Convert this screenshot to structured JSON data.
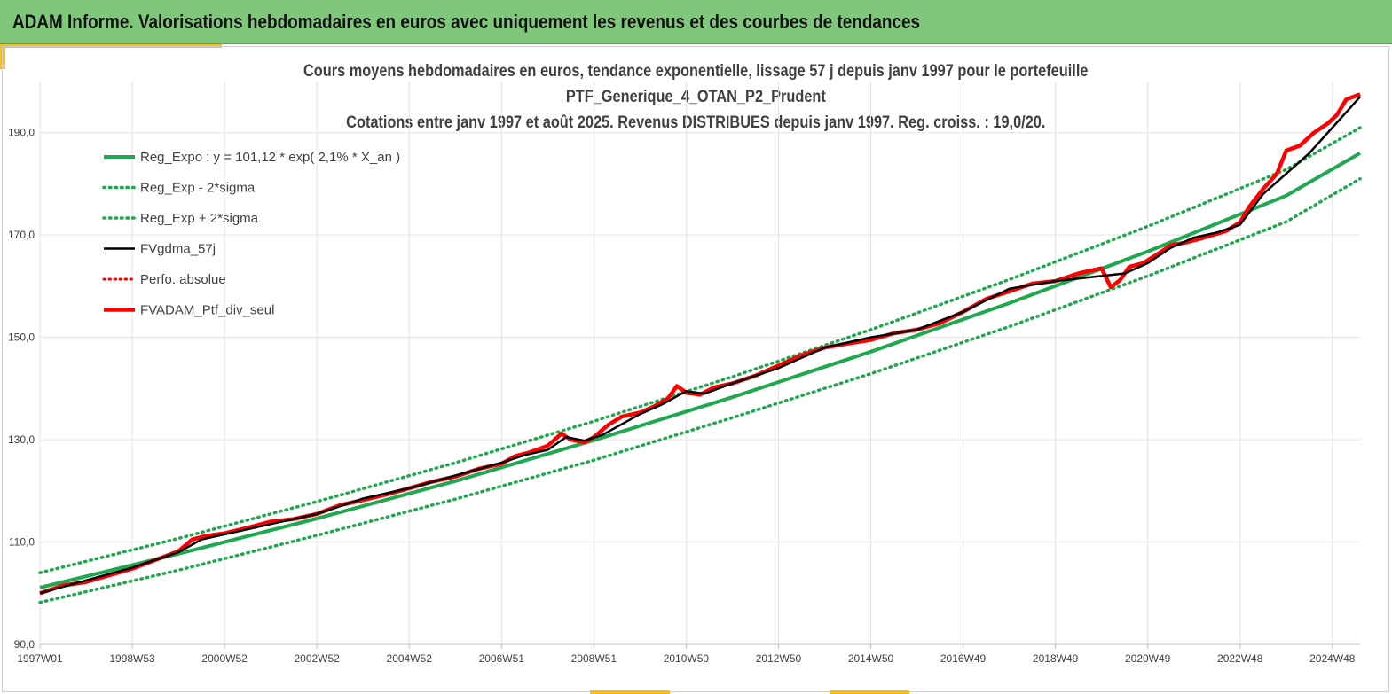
{
  "banner": {
    "title": "ADAM Informe. Valorisations hebdomadaires en euros avec uniquement les revenus et des courbes de tendances"
  },
  "chart_data": {
    "type": "line",
    "title_lines": [
      "Cours moyens hebdomadaires  en euros, tendance exponentielle, lissage 57 j depuis janv 1997 pour le portefeuille",
      "PTF_Generique_4_OTAN_P2_Prudent",
      "Cotations  entre janv 1997 et août 2025. Revenus DISTRIBUES depuis janv 1997. Reg. croiss. : 19,0/20."
    ],
    "xlabel": "",
    "ylabel": "",
    "ylim": [
      90,
      200
    ],
    "xlim": [
      1997.0,
      2025.6
    ],
    "yticks": [
      "90,0",
      "110,0",
      "130,0",
      "150,0",
      "170,0",
      "190,0"
    ],
    "yticks_values": [
      90,
      110,
      130,
      150,
      170,
      190
    ],
    "xticks": [
      "1997W01",
      "1998W53",
      "2000W52",
      "2002W52",
      "2004W52",
      "2006W51",
      "2008W51",
      "2010W50",
      "2012W50",
      "2014W50",
      "2016W49",
      "2018W49",
      "2020W49",
      "2022W48",
      "2024W48"
    ],
    "xticks_values": [
      1997.0,
      1999.0,
      2001.0,
      2003.0,
      2005.0,
      2007.0,
      2009.0,
      2011.0,
      2013.0,
      2015.0,
      2017.0,
      2019.0,
      2021.0,
      2023.0,
      2025.0
    ],
    "grid": true,
    "legend_position": "top-left",
    "colors": {
      "reg": "#1fa84f",
      "smooth": "#000000",
      "perf": "#ff0000",
      "frame": "#d0d0d0",
      "grid": "#e3e3e3"
    },
    "series": [
      {
        "name": "Reg_Expo : y = 101,12 * exp( 2,1% *  X_an )",
        "style": "solid-green",
        "x": [
          1997.0,
          2000.0,
          2003.0,
          2006.0,
          2009.0,
          2012.0,
          2015.0,
          2018.0,
          2021.0,
          2024.0,
          2025.6
        ],
        "y": [
          101.1,
          107.7,
          114.6,
          121.9,
          129.9,
          138.3,
          147.2,
          156.7,
          166.8,
          177.7,
          186.0
        ]
      },
      {
        "name": "Reg_Exp - 2*sigma",
        "style": "dotted-green",
        "x": [
          1997.0,
          2000.0,
          2003.0,
          2006.0,
          2009.0,
          2012.0,
          2015.0,
          2018.0,
          2021.0,
          2024.0,
          2025.6
        ],
        "y": [
          98.2,
          104.5,
          111.3,
          118.4,
          126.0,
          134.3,
          142.9,
          152.1,
          162.0,
          172.6,
          181.0
        ]
      },
      {
        "name": "Reg_Exp + 2*sigma",
        "style": "dotted-green",
        "x": [
          1997.0,
          2000.0,
          2003.0,
          2006.0,
          2009.0,
          2012.0,
          2015.0,
          2018.0,
          2021.0,
          2024.0,
          2025.6
        ],
        "y": [
          104.0,
          110.7,
          117.9,
          125.5,
          133.6,
          142.3,
          151.5,
          161.3,
          171.7,
          182.8,
          191.0
        ]
      },
      {
        "name": "FVgdma_57j",
        "style": "solid-black",
        "x": [
          1997.0,
          1998.0,
          1999.0,
          2000.0,
          2000.5,
          2001.0,
          2002.0,
          2003.0,
          2004.0,
          2005.0,
          2006.0,
          2007.0,
          2007.5,
          2008.0,
          2008.4,
          2008.8,
          2009.2,
          2010.0,
          2010.5,
          2011.0,
          2011.4,
          2012.0,
          2013.0,
          2014.0,
          2015.0,
          2016.0,
          2017.0,
          2018.0,
          2019.0,
          2020.0,
          2020.5,
          2021.0,
          2021.5,
          2022.0,
          2022.5,
          2023.0,
          2023.5,
          2024.0,
          2024.5,
          2025.0,
          2025.6
        ],
        "y": [
          100.0,
          102.5,
          105.0,
          108.0,
          110.5,
          111.5,
          113.5,
          115.5,
          118.5,
          120.5,
          123.0,
          125.5,
          127.0,
          128.0,
          130.5,
          129.8,
          131.0,
          135.0,
          137.0,
          139.5,
          139.0,
          141.0,
          144.0,
          148.0,
          150.0,
          151.5,
          155.0,
          159.5,
          161.0,
          162.0,
          162.5,
          164.5,
          167.5,
          169.5,
          170.5,
          172.0,
          178.0,
          182.0,
          186.0,
          191.0,
          197.0
        ]
      },
      {
        "name": "Perfo. absolue",
        "style": "dotted-red",
        "x": [],
        "y": []
      },
      {
        "name": "FVADAM_Ptf_div_seul",
        "style": "thick-red",
        "x": [
          1997.0,
          1997.5,
          1998.0,
          1998.5,
          1999.0,
          1999.5,
          2000.0,
          2000.3,
          2000.6,
          2001.0,
          2001.5,
          2002.0,
          2002.5,
          2003.0,
          2003.5,
          2004.0,
          2004.5,
          2005.0,
          2005.5,
          2006.0,
          2006.5,
          2007.0,
          2007.3,
          2007.6,
          2008.0,
          2008.3,
          2008.5,
          2008.8,
          2009.0,
          2009.3,
          2009.6,
          2010.0,
          2010.3,
          2010.6,
          2010.8,
          2011.0,
          2011.3,
          2011.6,
          2012.0,
          2012.5,
          2013.0,
          2013.5,
          2014.0,
          2014.5,
          2015.0,
          2015.5,
          2016.0,
          2016.5,
          2017.0,
          2017.5,
          2018.0,
          2018.5,
          2019.0,
          2019.5,
          2020.0,
          2020.2,
          2020.4,
          2020.6,
          2020.9,
          2021.2,
          2021.5,
          2021.8,
          2022.1,
          2022.4,
          2022.7,
          2023.0,
          2023.2,
          2023.5,
          2023.8,
          2024.0,
          2024.3,
          2024.6,
          2024.9,
          2025.1,
          2025.3,
          2025.6
        ],
        "y": [
          100.0,
          101.5,
          102.2,
          103.5,
          104.8,
          106.5,
          108.2,
          110.5,
          111.2,
          111.7,
          112.8,
          114.0,
          114.5,
          115.5,
          117.2,
          118.2,
          119.3,
          120.5,
          121.8,
          122.8,
          124.3,
          125.3,
          126.8,
          127.5,
          128.8,
          131.2,
          130.0,
          129.5,
          130.5,
          132.8,
          134.5,
          135.3,
          136.5,
          138.0,
          140.5,
          139.2,
          138.8,
          140.2,
          141.0,
          142.5,
          144.5,
          146.5,
          148.0,
          148.8,
          149.5,
          150.8,
          151.5,
          152.8,
          155.0,
          157.5,
          159.0,
          160.5,
          161.0,
          162.5,
          163.5,
          159.8,
          161.2,
          163.8,
          164.5,
          166.2,
          168.0,
          168.5,
          169.2,
          170.0,
          170.8,
          172.5,
          175.5,
          179.0,
          182.0,
          186.5,
          187.5,
          190.0,
          191.8,
          193.5,
          196.5,
          197.5
        ]
      }
    ]
  }
}
